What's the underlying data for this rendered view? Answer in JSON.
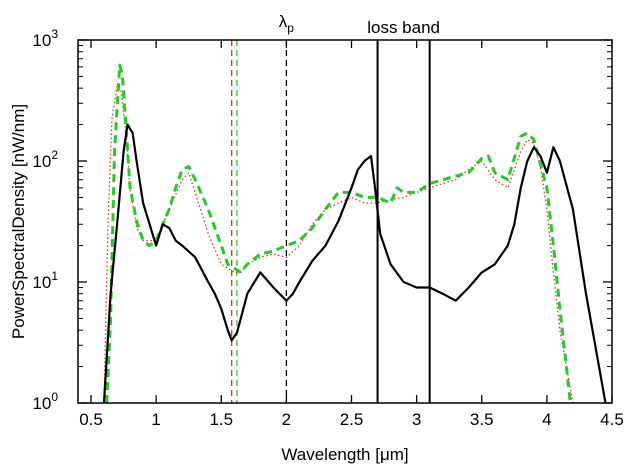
{
  "chart_data": {
    "type": "line",
    "title": "",
    "xlabel": "Wavelength [μm]",
    "ylabel": "PowerSpectralDensity [nW/nm]",
    "xlim": [
      0.4,
      4.5
    ],
    "ylim": [
      1,
      1000
    ],
    "yscale": "log",
    "grid": false,
    "x_ticks": [
      0.5,
      1,
      1.5,
      2,
      2.5,
      3,
      3.5,
      4,
      4.5
    ],
    "x_tick_labels": [
      "0.5",
      "1",
      "1.5",
      "2",
      "2.5",
      "3",
      "3.5",
      "4",
      "4.5"
    ],
    "y_ticks": [
      1,
      10,
      100,
      1000
    ],
    "y_tick_labels": [
      {
        "base": "10",
        "exp": "0"
      },
      {
        "base": "10",
        "exp": "1"
      },
      {
        "base": "10",
        "exp": "2"
      },
      {
        "base": "10",
        "exp": "3"
      }
    ],
    "annotations": {
      "pump_label": {
        "symbol": "λ",
        "subscript": "p",
        "x": 2.0
      },
      "loss_band_label": {
        "text": "loss band",
        "x_start": 2.7,
        "x_end": 3.1
      }
    },
    "vlines": [
      {
        "x": 1.58,
        "color": "#e03020",
        "style": "dashed"
      },
      {
        "x": 1.62,
        "color": "#22cc22",
        "style": "dashed"
      },
      {
        "x": 2.0,
        "color": "#000000",
        "style": "dashed"
      },
      {
        "x": 2.7,
        "color": "#000000",
        "style": "solid"
      },
      {
        "x": 3.1,
        "color": "#000000",
        "style": "solid"
      }
    ],
    "series": [
      {
        "color": "#e03020",
        "style": "dotted",
        "x": [
          0.6,
          0.63,
          0.66,
          0.7,
          0.73,
          0.77,
          0.8,
          0.85,
          0.9,
          1.0,
          1.1,
          1.2,
          1.25,
          1.3,
          1.4,
          1.5,
          1.55,
          1.6,
          1.65,
          1.7,
          1.8,
          1.9,
          2.0,
          2.1,
          2.2,
          2.3,
          2.4,
          2.5,
          2.6,
          2.7,
          2.8,
          2.9,
          3.0,
          3.1,
          3.2,
          3.3,
          3.4,
          3.5,
          3.6,
          3.7,
          3.8,
          3.85,
          3.9,
          3.95,
          4.0,
          4.05,
          4.1,
          4.2
        ],
        "y": [
          1,
          30,
          220,
          420,
          380,
          160,
          60,
          28,
          22,
          22,
          40,
          70,
          80,
          55,
          25,
          14,
          13,
          12,
          12,
          14,
          16,
          17,
          16,
          20,
          30,
          40,
          45,
          50,
          45,
          45,
          48,
          50,
          55,
          60,
          65,
          70,
          85,
          100,
          70,
          60,
          120,
          150,
          140,
          90,
          40,
          12,
          4,
          1
        ]
      },
      {
        "color": "#22cc22",
        "style": "dashed",
        "x": [
          0.62,
          0.65,
          0.68,
          0.72,
          0.74,
          0.77,
          0.8,
          0.85,
          0.9,
          0.95,
          1.0,
          1.1,
          1.15,
          1.2,
          1.25,
          1.3,
          1.4,
          1.5,
          1.55,
          1.6,
          1.65,
          1.7,
          1.8,
          1.9,
          2.0,
          2.1,
          2.2,
          2.3,
          2.4,
          2.5,
          2.6,
          2.7,
          2.8,
          2.85,
          2.9,
          3.0,
          3.1,
          3.2,
          3.3,
          3.4,
          3.5,
          3.55,
          3.6,
          3.7,
          3.8,
          3.85,
          3.9,
          4.0,
          4.05,
          4.1,
          4.15,
          4.18
        ],
        "y": [
          1,
          5,
          120,
          620,
          520,
          180,
          60,
          32,
          22,
          20,
          22,
          40,
          60,
          85,
          90,
          70,
          40,
          20,
          14,
          13,
          12,
          14,
          17,
          18,
          20,
          22,
          28,
          40,
          55,
          55,
          50,
          50,
          45,
          60,
          55,
          55,
          65,
          70,
          75,
          80,
          105,
          110,
          80,
          70,
          160,
          170,
          150,
          60,
          20,
          6,
          2,
          1
        ]
      },
      {
        "color": "#000000",
        "style": "solid",
        "x": [
          0.6,
          0.65,
          0.7,
          0.75,
          0.78,
          0.82,
          0.85,
          0.9,
          0.95,
          1.0,
          1.05,
          1.1,
          1.15,
          1.2,
          1.3,
          1.4,
          1.45,
          1.5,
          1.55,
          1.58,
          1.62,
          1.65,
          1.7,
          1.8,
          1.9,
          2.0,
          2.05,
          2.1,
          2.2,
          2.3,
          2.4,
          2.5,
          2.55,
          2.6,
          2.65,
          2.68,
          2.72,
          2.8,
          2.9,
          3.0,
          3.1,
          3.2,
          3.3,
          3.4,
          3.5,
          3.6,
          3.7,
          3.75,
          3.8,
          3.85,
          3.9,
          3.95,
          4.0,
          4.05,
          4.1,
          4.2,
          4.3,
          4.4,
          4.45
        ],
        "y": [
          1,
          8,
          30,
          120,
          200,
          170,
          100,
          45,
          30,
          20,
          30,
          28,
          22,
          20,
          16,
          10,
          8,
          6,
          4,
          3.3,
          3.8,
          5,
          8,
          12,
          9,
          7,
          8,
          10,
          15,
          20,
          32,
          60,
          85,
          100,
          110,
          60,
          25,
          14,
          10,
          9,
          9,
          8,
          7,
          9,
          12,
          14,
          20,
          30,
          60,
          100,
          130,
          110,
          80,
          130,
          100,
          40,
          8,
          2,
          1
        ]
      }
    ]
  }
}
